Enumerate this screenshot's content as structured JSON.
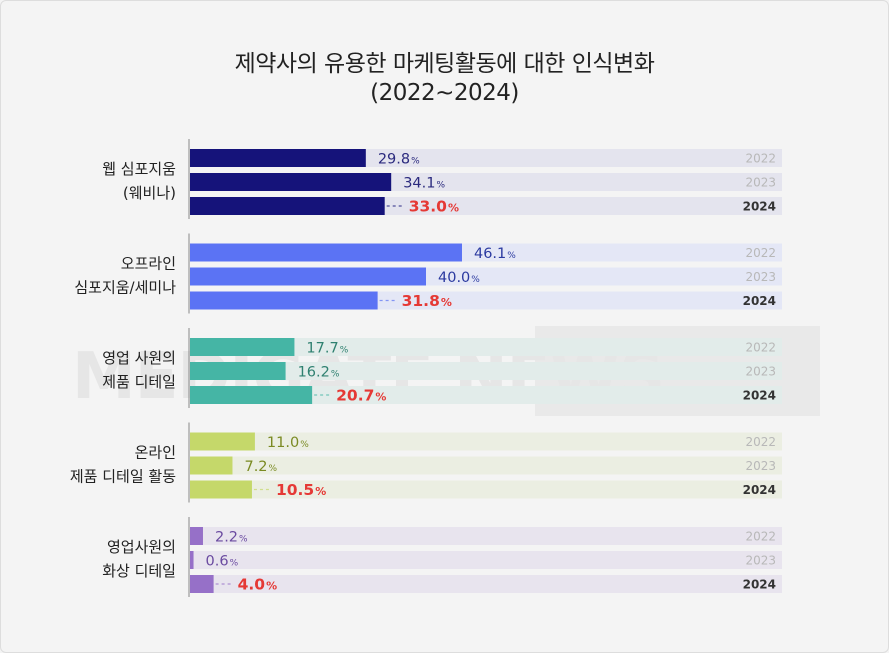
{
  "title_line1": "제약사의 유용한 마케팅활동에 대한  인식변화",
  "title_line2": "(2022~2024)",
  "watermark": "MEDIGATE NEWS",
  "chart_data": {
    "type": "bar",
    "orientation": "horizontal",
    "title": "제약사의 유용한 마케팅활동에 대한  인식변화 (2022~2024)",
    "unit": "%",
    "xlim": [
      0,
      100
    ],
    "years": [
      "2022",
      "2023",
      "2024"
    ],
    "categories": [
      {
        "label_lines": [
          "웹 심포지움",
          "(웨비나)"
        ],
        "values": [
          29.8,
          34.1,
          33.0
        ],
        "color": "#15137a",
        "value_color": "#2b2a7e",
        "track": "#e4e4ee"
      },
      {
        "label_lines": [
          "오프라인",
          "심포지움/세미나"
        ],
        "values": [
          46.1,
          40.0,
          31.8
        ],
        "color": "#5b73f4",
        "value_color": "#2b3aa0",
        "track": "#e4e7f6"
      },
      {
        "label_lines": [
          "영업 사원의",
          "제품 디테일"
        ],
        "values": [
          17.7,
          16.2,
          20.7
        ],
        "color": "#45b5a5",
        "value_color": "#2f8070",
        "track": "#e2ecea"
      },
      {
        "label_lines": [
          "온라인",
          "제품 디테일 활동"
        ],
        "values": [
          11.0,
          7.2,
          10.5
        ],
        "color": "#c5d86a",
        "value_color": "#7a8a22",
        "track": "#ebeee2"
      },
      {
        "label_lines": [
          "영업사원의",
          "화상 디테일"
        ],
        "values": [
          2.2,
          0.6,
          4.0
        ],
        "color": "#9670c8",
        "value_color": "#6a4aa0",
        "track": "#e8e4ee"
      }
    ],
    "highlight_year": "2024",
    "highlight_value_color": "#e53935",
    "year_label_color": "#b8b8b8",
    "year_label_highlight_color": "#333333"
  }
}
